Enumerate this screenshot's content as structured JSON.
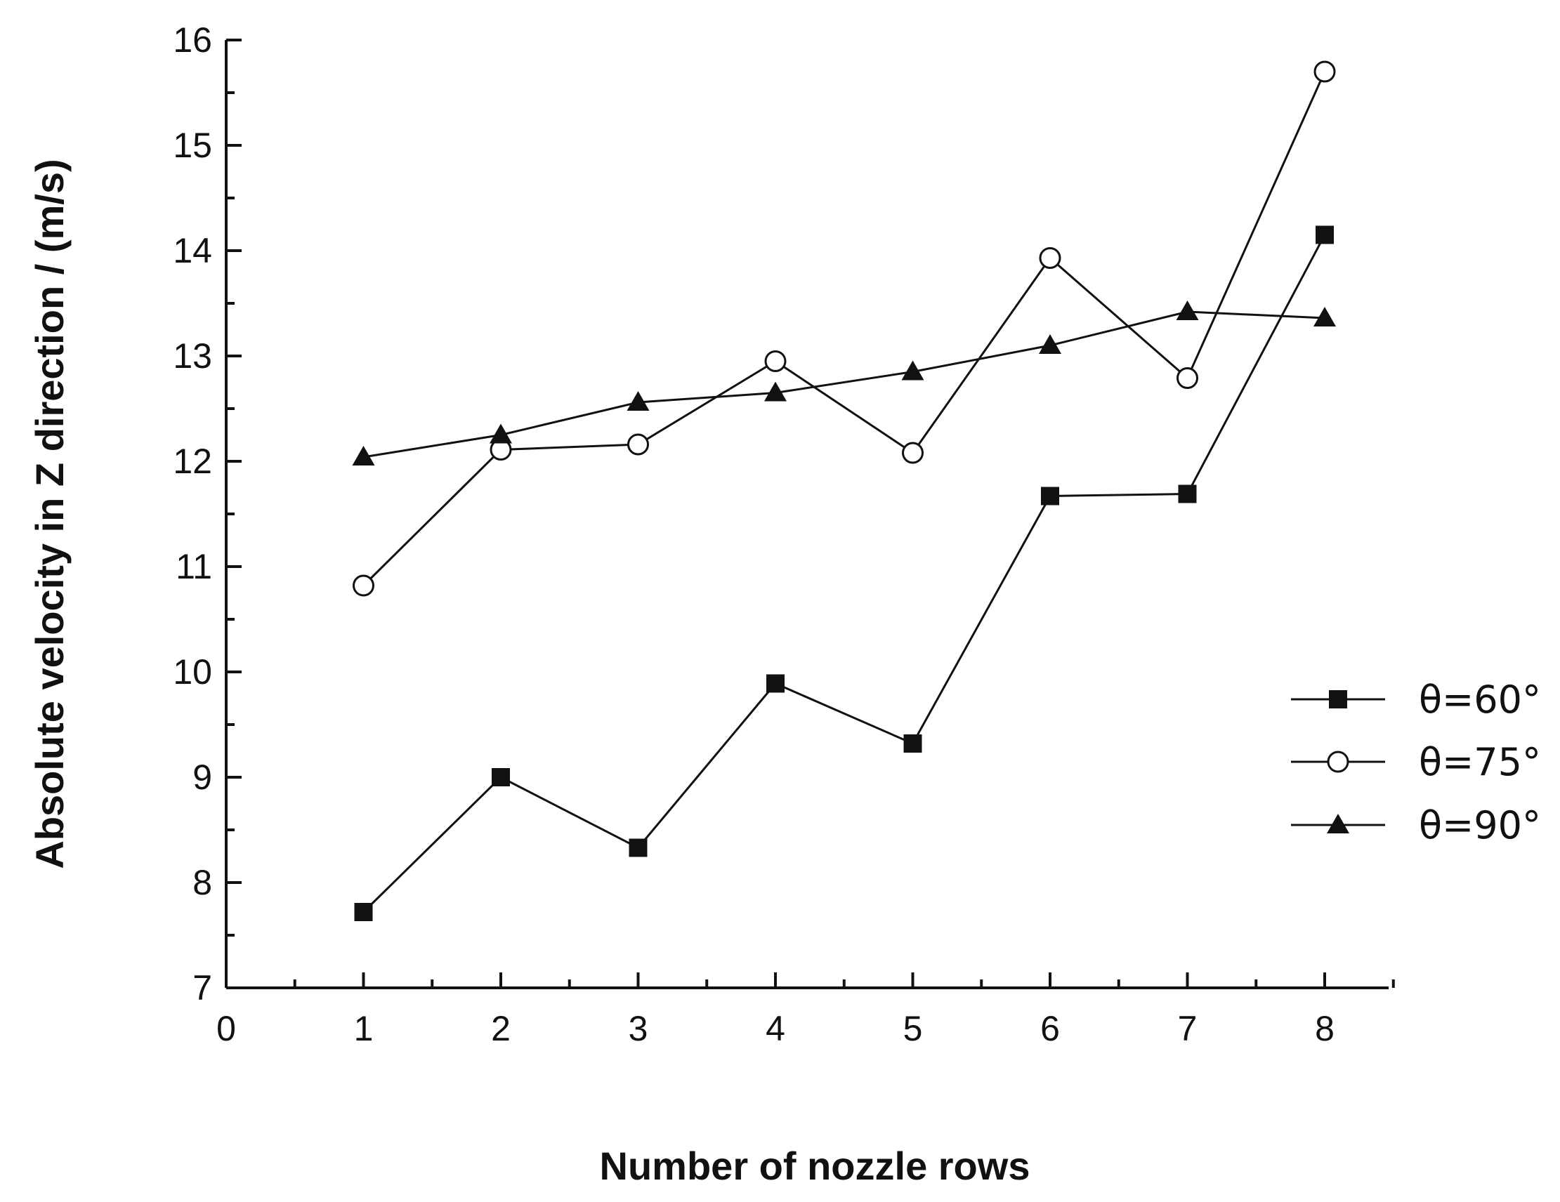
{
  "chart_data": {
    "type": "line",
    "xlabel": "Number of nozzle rows",
    "ylabel": "Absolute velocity in Z direction / (m/s)",
    "xlim": [
      0,
      8.5
    ],
    "ylim": [
      7,
      16
    ],
    "x_ticks": [
      0,
      1,
      2,
      3,
      4,
      5,
      6,
      7,
      8
    ],
    "y_ticks": [
      7,
      8,
      9,
      10,
      11,
      12,
      13,
      14,
      15,
      16
    ],
    "grid": false,
    "legend_position": "right",
    "x": [
      1,
      2,
      3,
      4,
      5,
      6,
      7,
      8
    ],
    "series": [
      {
        "name": "θ=60°",
        "marker": "filled-square",
        "values": [
          7.72,
          9.0,
          8.33,
          9.89,
          9.32,
          11.67,
          11.69,
          14.15
        ]
      },
      {
        "name": "θ=75°",
        "marker": "open-circle",
        "values": [
          10.82,
          12.11,
          12.16,
          12.95,
          12.08,
          13.93,
          12.79,
          15.7
        ]
      },
      {
        "name": "θ=90°",
        "marker": "filled-triangle",
        "values": [
          12.04,
          12.25,
          12.56,
          12.65,
          12.85,
          13.1,
          13.42,
          13.36
        ]
      }
    ]
  }
}
